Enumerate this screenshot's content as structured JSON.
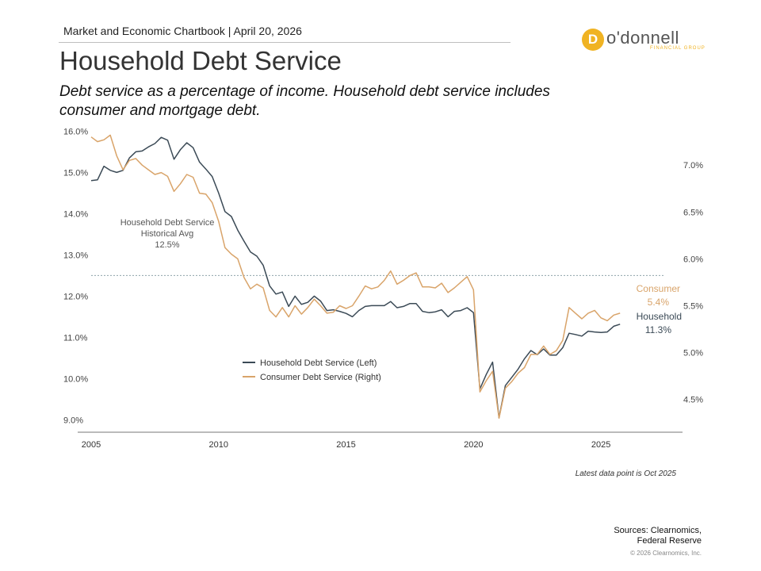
{
  "header": {
    "text": "Market and Economic Chartbook | April 20, 2026"
  },
  "logo": {
    "badge_letter": "D",
    "word": "o'donnell",
    "sub": "FINANCIAL GROUP",
    "color": "#f0b323"
  },
  "title": "Household Debt Service",
  "subtitle": "Debt service as a percentage of income. Household debt service includes consumer and mortgage debt.",
  "footnote": "Latest data point is Oct 2025",
  "sources": [
    "Sources: Clearnomics,",
    "Federal Reserve"
  ],
  "copyright": "© 2026 Clearnomics, Inc.",
  "chart_data": {
    "type": "line",
    "title": "Household Debt Service",
    "x_ticks": [
      "2005",
      "2010",
      "2015",
      "2020",
      "2025"
    ],
    "x_range": [
      2005,
      2028.2
    ],
    "y_left": {
      "range": [
        8.7,
        16.2
      ],
      "ticks": [
        9.0,
        10.0,
        11.0,
        12.0,
        13.0,
        14.0,
        15.0,
        16.0
      ],
      "tick_labels": [
        "9.0%",
        "10.0%",
        "11.0%",
        "12.0%",
        "13.0%",
        "14.0%",
        "15.0%",
        "16.0%"
      ]
    },
    "y_right": {
      "range": [
        4.15,
        7.45
      ],
      "ticks": [
        4.5,
        5.0,
        5.5,
        6.0,
        6.5,
        7.0
      ],
      "tick_labels": [
        "4.5%",
        "5.0%",
        "5.5%",
        "6.0%",
        "6.5%",
        "7.0%"
      ]
    },
    "historical_avg": {
      "value": 12.5,
      "label_lines": [
        "Household Debt Service",
        "Historical Avg",
        "12.5%"
      ]
    },
    "legend": {
      "placement": "lower-middle",
      "entries": [
        "Household Debt Service (Left)",
        "Consumer Debt Service (Right)"
      ]
    },
    "end_labels": {
      "consumer": [
        "Consumer",
        "5.4%"
      ],
      "household": [
        "Household",
        "11.3%"
      ]
    },
    "series": [
      {
        "name": "Household Debt Service (Left)",
        "axis": "left",
        "color": "#3b4a56",
        "x": [
          2005.0,
          2005.25,
          2005.5,
          2005.75,
          2006.0,
          2006.25,
          2006.5,
          2006.75,
          2007.0,
          2007.25,
          2007.5,
          2007.75,
          2008.0,
          2008.25,
          2008.5,
          2008.75,
          2009.0,
          2009.25,
          2009.5,
          2009.75,
          2010.0,
          2010.25,
          2010.5,
          2010.75,
          2011.0,
          2011.25,
          2011.5,
          2011.75,
          2012.0,
          2012.25,
          2012.5,
          2012.75,
          2013.0,
          2013.25,
          2013.5,
          2013.75,
          2014.0,
          2014.25,
          2014.5,
          2014.75,
          2015.0,
          2015.25,
          2015.5,
          2015.75,
          2016.0,
          2016.25,
          2016.5,
          2016.75,
          2017.0,
          2017.25,
          2017.5,
          2017.75,
          2018.0,
          2018.25,
          2018.5,
          2018.75,
          2019.0,
          2019.25,
          2019.5,
          2019.75,
          2020.0,
          2020.25,
          2020.5,
          2020.75,
          2021.0,
          2021.25,
          2021.5,
          2021.75,
          2022.0,
          2022.25,
          2022.5,
          2022.75,
          2023.0,
          2023.25,
          2023.5,
          2023.75,
          2024.0,
          2024.25,
          2024.5,
          2024.75,
          2025.0,
          2025.25,
          2025.5,
          2025.75
        ],
        "values": [
          14.8,
          14.82,
          15.15,
          15.05,
          15.0,
          15.05,
          15.35,
          15.5,
          15.52,
          15.62,
          15.7,
          15.85,
          15.78,
          15.32,
          15.55,
          15.72,
          15.6,
          15.25,
          15.08,
          14.9,
          14.5,
          14.05,
          13.93,
          13.6,
          13.33,
          13.07,
          12.97,
          12.75,
          12.25,
          12.05,
          12.1,
          11.75,
          12.0,
          11.8,
          11.85,
          12.0,
          11.88,
          11.65,
          11.67,
          11.63,
          11.58,
          11.5,
          11.65,
          11.75,
          11.77,
          11.77,
          11.77,
          11.87,
          11.72,
          11.75,
          11.82,
          11.82,
          11.63,
          11.6,
          11.62,
          11.67,
          11.5,
          11.63,
          11.65,
          11.72,
          11.6,
          9.75,
          10.1,
          10.4,
          9.05,
          9.83,
          10.03,
          10.23,
          10.48,
          10.68,
          10.58,
          10.72,
          10.57,
          10.57,
          10.75,
          11.1,
          11.07,
          11.03,
          11.15,
          11.13,
          11.12,
          11.13,
          11.27,
          11.32
        ]
      },
      {
        "name": "Consumer Debt Service (Right)",
        "axis": "right",
        "color": "#d9a46a",
        "x": [
          2005.0,
          2005.25,
          2005.5,
          2005.75,
          2006.0,
          2006.25,
          2006.5,
          2006.75,
          2007.0,
          2007.25,
          2007.5,
          2007.75,
          2008.0,
          2008.25,
          2008.5,
          2008.75,
          2009.0,
          2009.25,
          2009.5,
          2009.75,
          2010.0,
          2010.25,
          2010.5,
          2010.75,
          2011.0,
          2011.25,
          2011.5,
          2011.75,
          2012.0,
          2012.25,
          2012.5,
          2012.75,
          2013.0,
          2013.25,
          2013.5,
          2013.75,
          2014.0,
          2014.25,
          2014.5,
          2014.75,
          2015.0,
          2015.25,
          2015.5,
          2015.75,
          2016.0,
          2016.25,
          2016.5,
          2016.75,
          2017.0,
          2017.25,
          2017.5,
          2017.75,
          2018.0,
          2018.25,
          2018.5,
          2018.75,
          2019.0,
          2019.25,
          2019.5,
          2019.75,
          2020.0,
          2020.25,
          2020.5,
          2020.75,
          2021.0,
          2021.25,
          2021.5,
          2021.75,
          2022.0,
          2022.25,
          2022.5,
          2022.75,
          2023.0,
          2023.25,
          2023.5,
          2023.75,
          2024.0,
          2024.25,
          2024.5,
          2024.75,
          2025.0,
          2025.25,
          2025.5,
          2025.75
        ],
        "values": [
          7.3,
          7.25,
          7.27,
          7.32,
          7.1,
          6.95,
          7.05,
          7.07,
          7.0,
          6.95,
          6.9,
          6.92,
          6.88,
          6.72,
          6.8,
          6.9,
          6.87,
          6.7,
          6.69,
          6.6,
          6.4,
          6.12,
          6.05,
          6.0,
          5.8,
          5.68,
          5.73,
          5.69,
          5.45,
          5.38,
          5.48,
          5.38,
          5.5,
          5.41,
          5.48,
          5.57,
          5.5,
          5.42,
          5.43,
          5.5,
          5.47,
          5.5,
          5.6,
          5.71,
          5.68,
          5.7,
          5.77,
          5.87,
          5.73,
          5.77,
          5.82,
          5.85,
          5.7,
          5.7,
          5.69,
          5.74,
          5.64,
          5.69,
          5.75,
          5.81,
          5.67,
          4.58,
          4.7,
          4.8,
          4.3,
          4.62,
          4.69,
          4.78,
          4.84,
          4.98,
          4.98,
          5.07,
          4.98,
          5.02,
          5.13,
          5.48,
          5.42,
          5.36,
          5.42,
          5.45,
          5.37,
          5.34,
          5.4,
          5.42
        ]
      }
    ]
  }
}
